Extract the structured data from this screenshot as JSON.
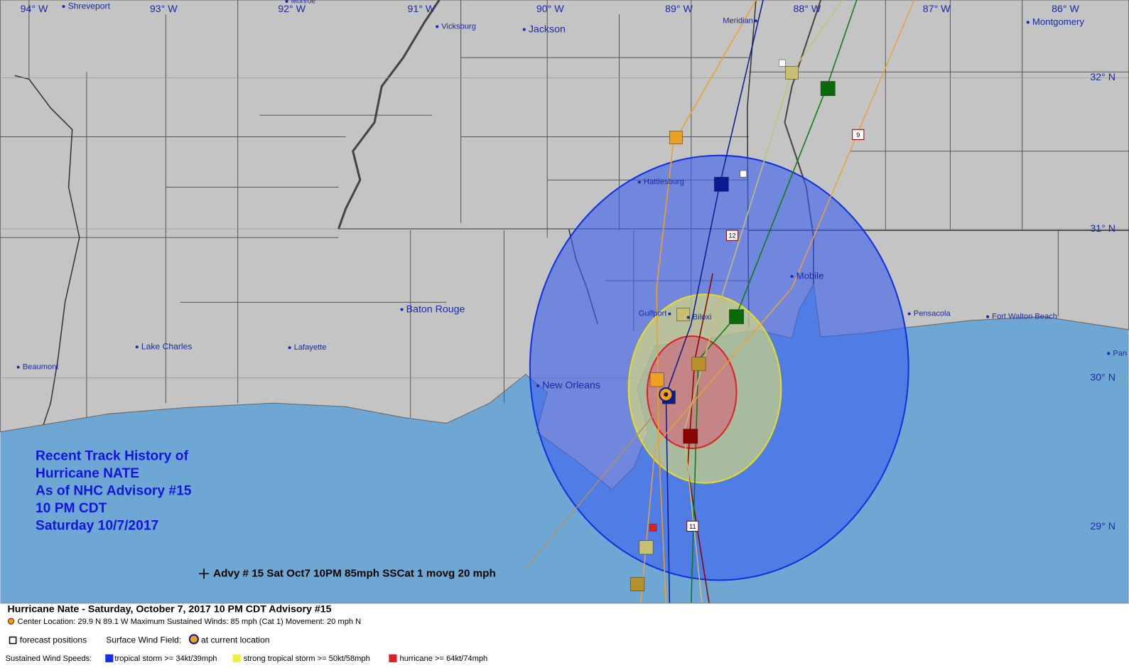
{
  "map": {
    "longitude_labels": [
      "94° W",
      "93° W",
      "92° W",
      "91° W",
      "90° W",
      "89° W",
      "88° W",
      "87° W",
      "86° W"
    ],
    "latitude_labels": [
      "32° N",
      "31° N",
      "30° N",
      "29° N"
    ],
    "cities": [
      "Shreveport",
      "Monroe",
      "Vicksburg",
      "Jackson",
      "Meridian",
      "Montgomery",
      "Hattiesburg",
      "Baton Rouge",
      "Lake Charles",
      "Lafayette",
      "Beaumont",
      "New Orleans",
      "Gulfport",
      "Biloxi",
      "Mobile",
      "Pensacola",
      "Fort Walton Beach",
      "Pan"
    ],
    "markers": [
      "12",
      "9",
      "11"
    ],
    "history_title": [
      "Recent Track History of",
      "Hurricane NATE",
      "As of NHC Advisory #15",
      "10 PM CDT",
      "Saturday 10/7/2017"
    ],
    "advisory_label": "Advy # 15 Sat Oct7 10PM  85mph SSCat 1 movg 20 mph"
  },
  "legend": {
    "title": "Hurricane Nate  -  Saturday, October 7, 2017  10 PM CDT   Advisory #15",
    "center": "Center Location: 29.9 N  89.1 W   Maximum Sustained Winds: 85 mph (Cat 1) Movement: 20 mph N",
    "forecast": "forecast positions",
    "wind_field": "Surface Wind Field:",
    "current": "at current location",
    "speeds": "Sustained Wind Speeds:",
    "ts": "tropical storm >= 34kt/39mph",
    "sts": "strong tropical storm >= 50kt/58mph",
    "hu": "hurricane >= 64kt/74mph"
  }
}
